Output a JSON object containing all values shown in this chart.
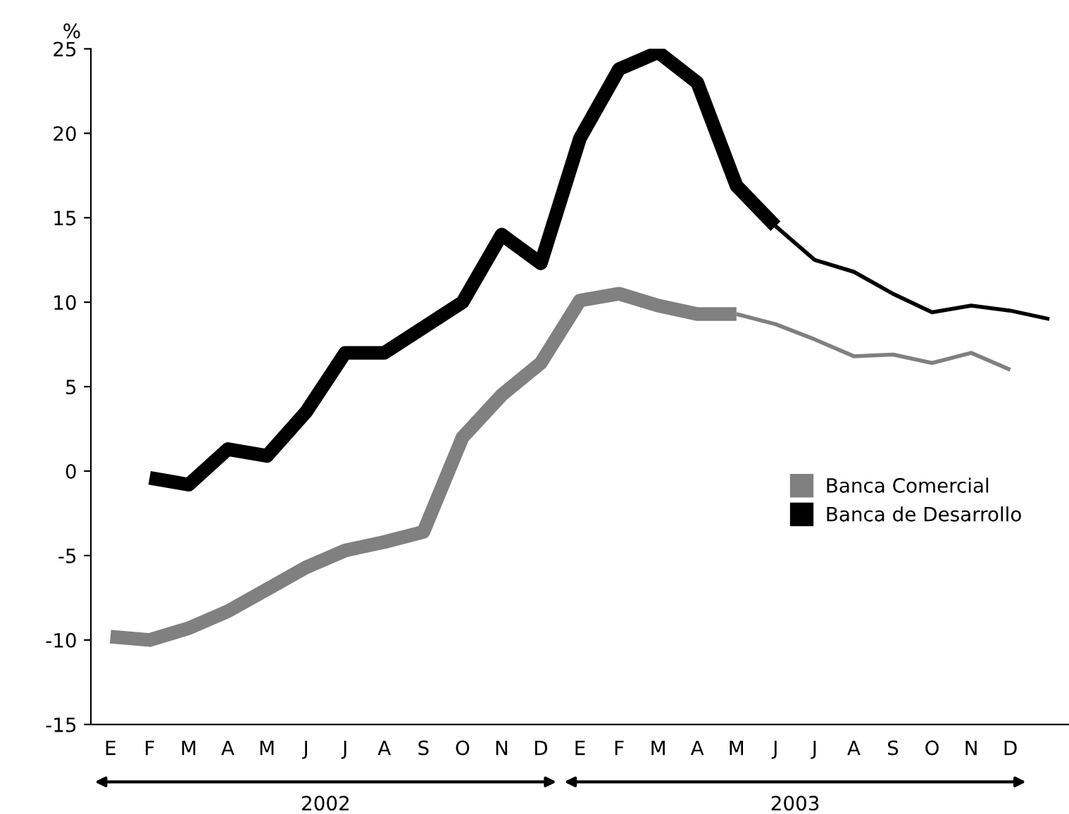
{
  "chart_data": {
    "type": "line",
    "ylabel": "%",
    "categories": [
      "E",
      "F",
      "M",
      "A",
      "M",
      "J",
      "J",
      "A",
      "S",
      "O",
      "N",
      "D",
      "E",
      "F",
      "M",
      "A",
      "M",
      "J",
      "J",
      "A",
      "S",
      "O",
      "N",
      "D",
      null
    ],
    "series": [
      {
        "name": "Banca Comercial",
        "color": "#808080",
        "values": [
          -9.8,
          -10,
          -9.3,
          -8.3,
          -7,
          -5.7,
          -4.7,
          -4.2,
          -3.6,
          2,
          4.5,
          6.4,
          10.1,
          10.5,
          9.8,
          9.3,
          9.3,
          null,
          null,
          null,
          null,
          null,
          null,
          null,
          null
        ]
      },
      {
        "name": "Banca de Desarrollo",
        "color": "#000000",
        "values": [
          null,
          -0.4,
          -0.8,
          1.3,
          0.9,
          3.5,
          7,
          7,
          8.5,
          10,
          14,
          12.3,
          19.7,
          23.8,
          24.8,
          23,
          16.9,
          14.5,
          null,
          null,
          null,
          null,
          null,
          null,
          null
        ]
      },
      {
        "color": "#808080",
        "values": [
          null,
          null,
          null,
          null,
          null,
          null,
          null,
          null,
          null,
          null,
          null,
          null,
          null,
          null,
          null,
          null,
          9.3,
          8.7,
          7.8,
          6.8,
          6.9,
          6.4,
          7,
          6,
          null
        ]
      },
      {
        "color": "#000000",
        "values": [
          null,
          null,
          null,
          null,
          null,
          null,
          null,
          null,
          null,
          null,
          null,
          null,
          null,
          null,
          null,
          null,
          null,
          14.5,
          12.5,
          11.8,
          10.5,
          9.4,
          9.8,
          9.5,
          9
        ]
      }
    ],
    "ylim": [
      -15,
      25
    ],
    "yticks": [
      -15,
      -10,
      -5,
      0,
      5,
      10,
      15,
      20,
      25
    ],
    "annotations": [
      "2002",
      "2003"
    ],
    "grid": false,
    "legend": "right",
    "marker": "none",
    "line_style": "solid"
  }
}
